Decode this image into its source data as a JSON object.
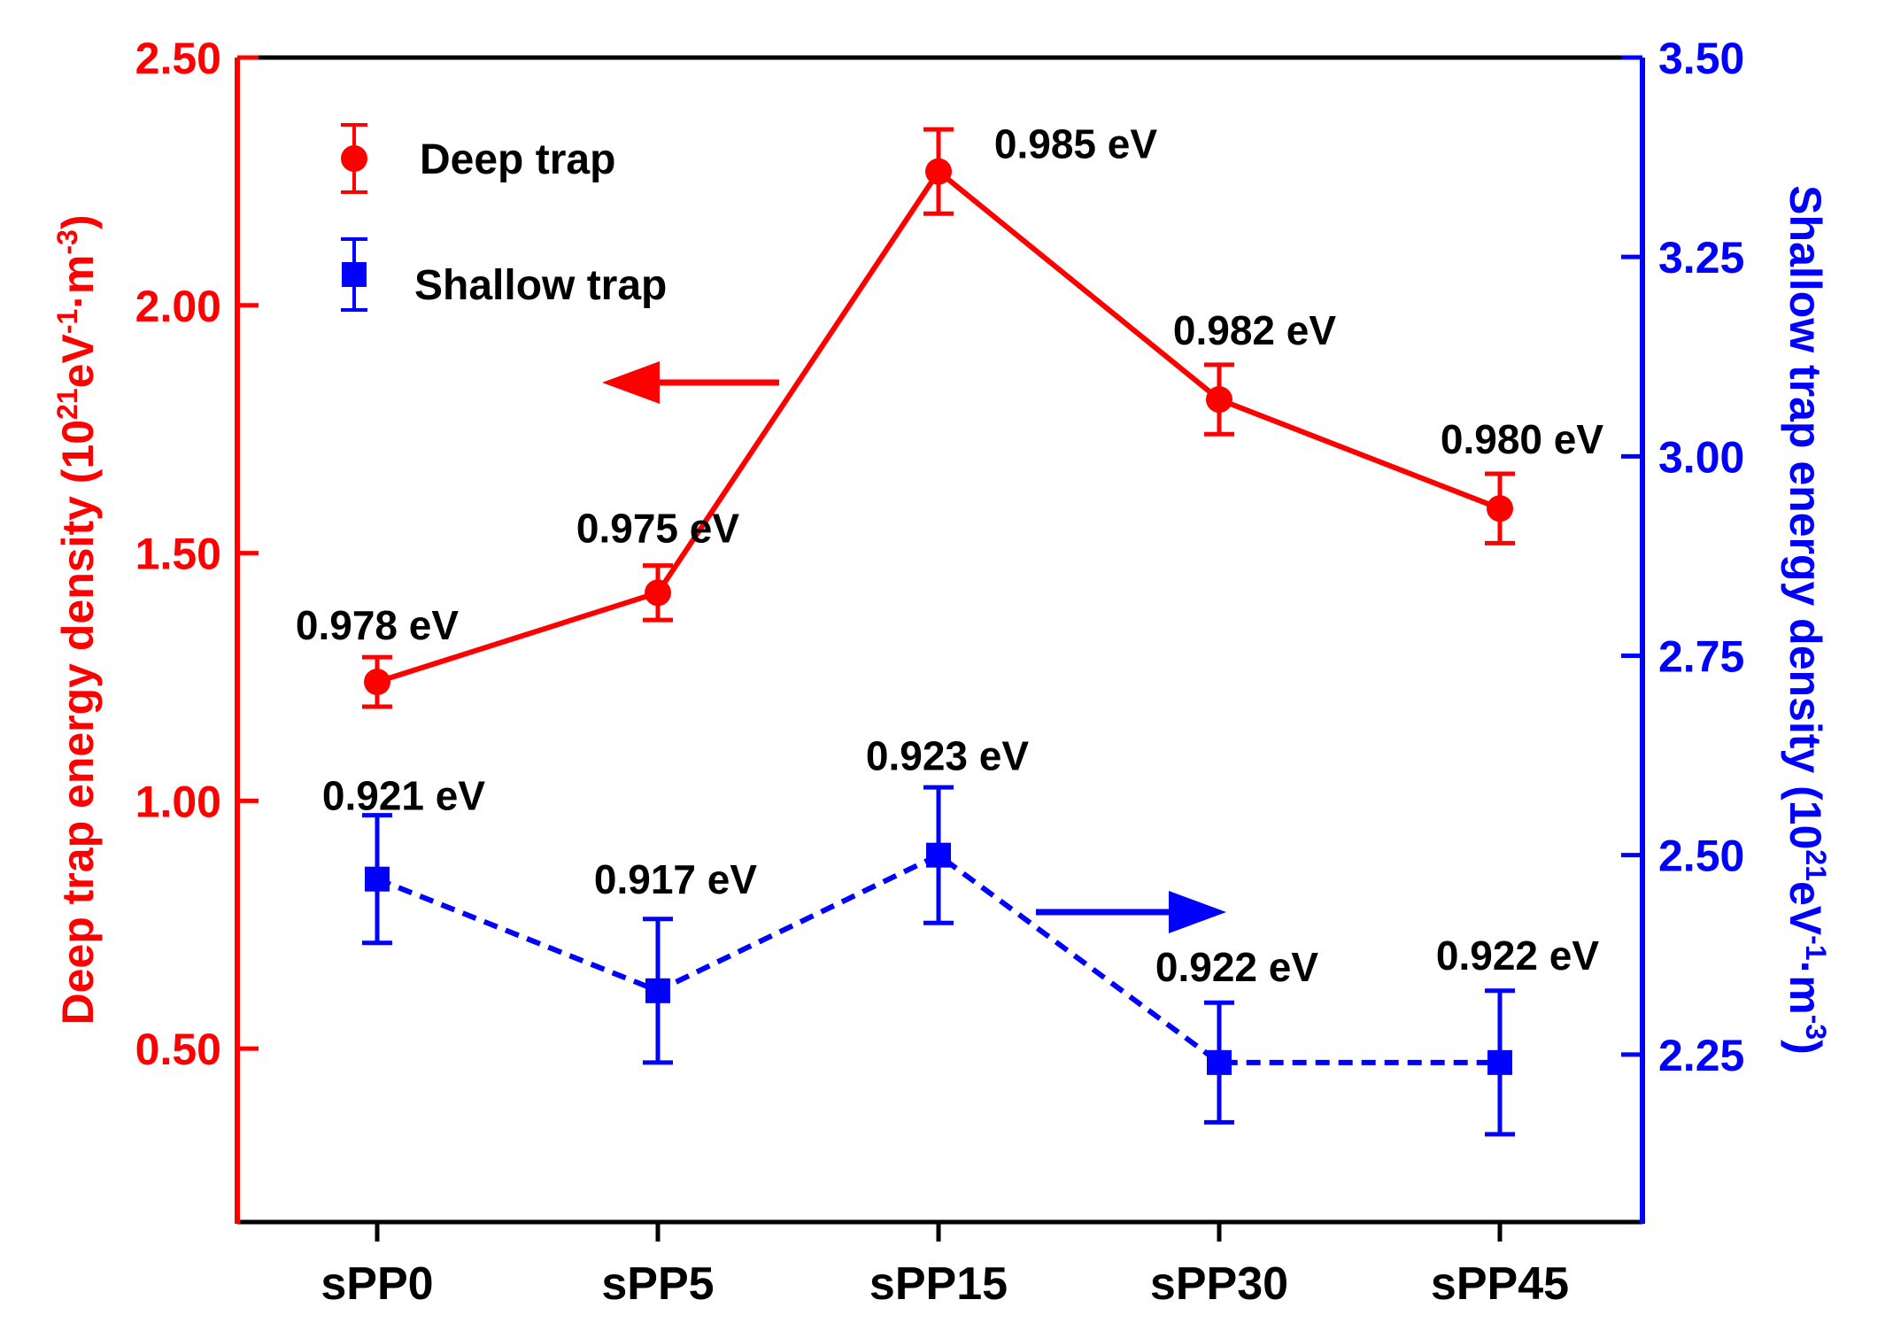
{
  "chart_data": {
    "type": "line",
    "categories": [
      "sPP0",
      "sPP5",
      "sPP15",
      "sPP30",
      "sPP45"
    ],
    "left_axis": {
      "title_main": "Deep trap energy density (10",
      "title_sup1": "21",
      "title_mid": "eV",
      "title_sup2": "-1",
      "title_dot": "·m",
      "title_sup3": "-3",
      "title_end": ")",
      "ylim": [
        0.15,
        2.5
      ],
      "ticks": [
        0.5,
        1.0,
        1.5,
        2.0,
        2.5
      ],
      "tick_labels": [
        "0.50",
        "1.00",
        "1.50",
        "2.00",
        "2.50"
      ],
      "color": "#ff0000"
    },
    "right_axis": {
      "title_main": "Shallow trap energy density (10",
      "title_sup1": "21",
      "title_mid": "eV",
      "title_sup2": "-1",
      "title_dot": "·m",
      "title_sup3": "-3",
      "title_end": ")",
      "ylim": [
        2.04,
        3.5
      ],
      "ticks": [
        2.25,
        2.5,
        2.75,
        3.0,
        3.25,
        3.5
      ],
      "tick_labels": [
        "2.25",
        "2.50",
        "2.75",
        "3.00",
        "3.25",
        "3.50"
      ],
      "color": "#0000ff"
    },
    "series": [
      {
        "name": "Deep trap",
        "axis": "left",
        "color": "#ff0000",
        "marker": "circle",
        "line": "solid",
        "values": [
          1.24,
          1.42,
          2.27,
          1.81,
          1.59
        ],
        "errors": [
          0.05,
          0.055,
          0.085,
          0.07,
          0.07
        ],
        "annotations": [
          "0.978 eV",
          "0.975 eV",
          "0.985 eV",
          "0.982 eV",
          "0.980 eV"
        ]
      },
      {
        "name": "Shallow trap",
        "axis": "right",
        "color": "#0000ff",
        "marker": "square",
        "line": "dashed",
        "values": [
          2.47,
          2.33,
          2.5,
          2.24,
          2.24
        ],
        "errors": [
          0.08,
          0.09,
          0.085,
          0.075,
          0.09
        ],
        "annotations": [
          "0.921 eV",
          "0.917 eV",
          "0.923 eV",
          "0.922 eV",
          "0.922 eV"
        ]
      }
    ],
    "legend": {
      "position": "top-left",
      "entries": [
        "Deep trap",
        "Shallow trap"
      ]
    }
  }
}
